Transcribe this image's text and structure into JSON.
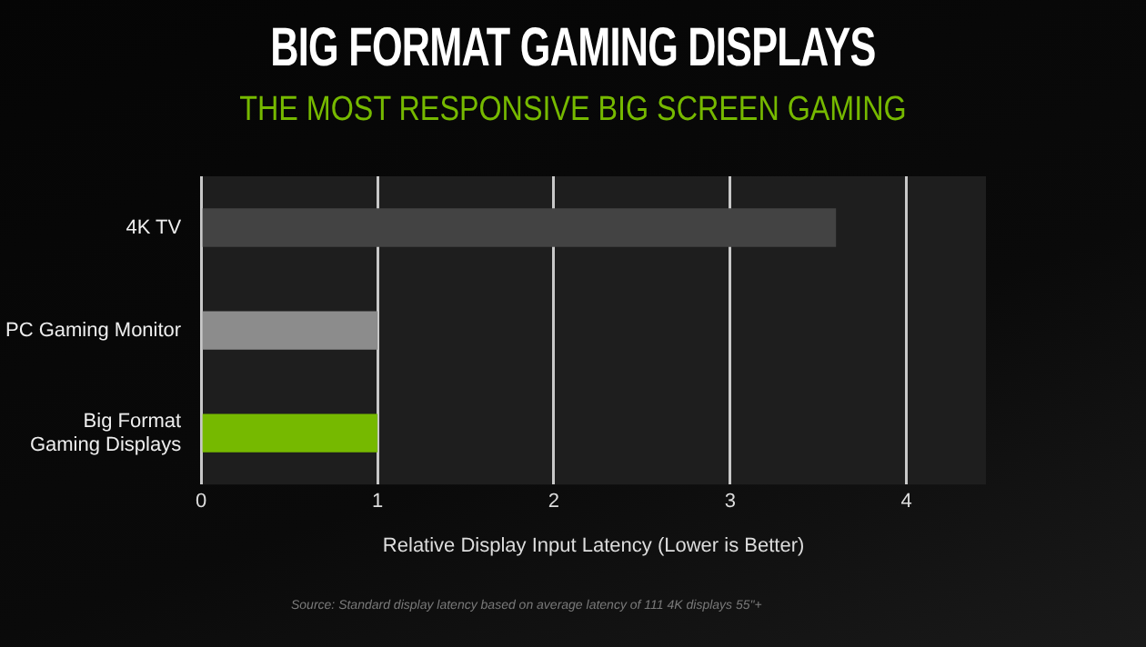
{
  "chart_data": {
    "type": "bar",
    "orientation": "horizontal",
    "title": "BIG FORMAT GAMING DISPLAYS",
    "subtitle": "THE MOST RESPONSIVE BIG SCREEN GAMING",
    "xlabel": "Relative Display Input Latency (Lower is Better)",
    "categories": [
      "4K TV",
      "PC Gaming Monitor",
      "Big Format Gaming Displays"
    ],
    "values": [
      3.6,
      1,
      1
    ],
    "colors": [
      "#434343",
      "#8c8c8c",
      "#76b900"
    ],
    "xlim": [
      0,
      4.45
    ],
    "xticks": [
      0,
      1,
      2,
      3,
      4
    ],
    "grid": "x",
    "legend": false,
    "annotations": [
      "Source: Standard display latency based on average latency of 111 4K displays 55\"+"
    ]
  }
}
